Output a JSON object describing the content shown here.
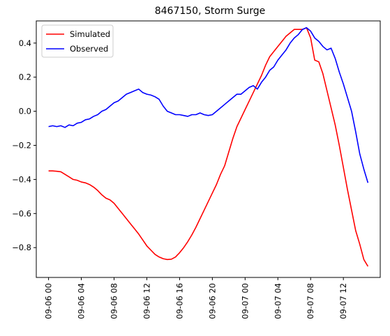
{
  "chart_data": {
    "type": "line",
    "title": "8467150, Storm Surge",
    "xlabel": "",
    "ylabel": "",
    "x_unit": "hours from 09-06 00",
    "xlim": [
      -1.5,
      37.5
    ],
    "ylim": [
      -0.975,
      0.53
    ],
    "x_ticks": [
      {
        "x": 0,
        "label": "09-06 00"
      },
      {
        "x": 4,
        "label": "09-06 04"
      },
      {
        "x": 8,
        "label": "09-06 08"
      },
      {
        "x": 12,
        "label": "09-06 12"
      },
      {
        "x": 16,
        "label": "09-06 16"
      },
      {
        "x": 20,
        "label": "09-06 20"
      },
      {
        "x": 24,
        "label": "09-07 00"
      },
      {
        "x": 28,
        "label": "09-07 04"
      },
      {
        "x": 32,
        "label": "09-07 08"
      },
      {
        "x": 36,
        "label": "09-07 12"
      }
    ],
    "y_ticks": [
      {
        "y": 0.4,
        "label": "0.4"
      },
      {
        "y": 0.2,
        "label": "0.2"
      },
      {
        "y": 0.0,
        "label": "0.0"
      },
      {
        "y": -0.2,
        "label": "−0.2"
      },
      {
        "y": -0.4,
        "label": "−0.4"
      },
      {
        "y": -0.6,
        "label": "−0.6"
      },
      {
        "y": -0.8,
        "label": "−0.8"
      }
    ],
    "grid": false,
    "legend": "top-left",
    "series": [
      {
        "name": "Simulated",
        "color": "#ff0000",
        "points": [
          [
            0,
            -0.35
          ],
          [
            0.5,
            -0.35
          ],
          [
            1,
            -0.352
          ],
          [
            1.5,
            -0.355
          ],
          [
            2,
            -0.37
          ],
          [
            2.5,
            -0.385
          ],
          [
            3,
            -0.4
          ],
          [
            3.5,
            -0.405
          ],
          [
            4,
            -0.415
          ],
          [
            4.5,
            -0.42
          ],
          [
            5,
            -0.43
          ],
          [
            5.5,
            -0.445
          ],
          [
            6,
            -0.465
          ],
          [
            6.5,
            -0.49
          ],
          [
            7,
            -0.51
          ],
          [
            7.5,
            -0.52
          ],
          [
            8,
            -0.54
          ],
          [
            8.5,
            -0.57
          ],
          [
            9,
            -0.6
          ],
          [
            9.5,
            -0.63
          ],
          [
            10,
            -0.66
          ],
          [
            10.5,
            -0.69
          ],
          [
            11,
            -0.72
          ],
          [
            11.5,
            -0.755
          ],
          [
            12,
            -0.79
          ],
          [
            12.5,
            -0.815
          ],
          [
            13,
            -0.84
          ],
          [
            13.5,
            -0.855
          ],
          [
            14,
            -0.865
          ],
          [
            14.5,
            -0.87
          ],
          [
            15,
            -0.868
          ],
          [
            15.5,
            -0.855
          ],
          [
            16,
            -0.83
          ],
          [
            16.5,
            -0.8
          ],
          [
            17,
            -0.765
          ],
          [
            17.5,
            -0.725
          ],
          [
            18,
            -0.68
          ],
          [
            18.5,
            -0.63
          ],
          [
            19,
            -0.58
          ],
          [
            19.5,
            -0.53
          ],
          [
            20,
            -0.48
          ],
          [
            20.5,
            -0.43
          ],
          [
            21,
            -0.37
          ],
          [
            21.5,
            -0.32
          ],
          [
            22,
            -0.24
          ],
          [
            22.5,
            -0.16
          ],
          [
            23,
            -0.09
          ],
          [
            23.5,
            -0.04
          ],
          [
            24,
            0.01
          ],
          [
            24.5,
            0.06
          ],
          [
            25,
            0.11
          ],
          [
            25.5,
            0.16
          ],
          [
            26,
            0.21
          ],
          [
            26.5,
            0.27
          ],
          [
            27,
            0.32
          ],
          [
            27.5,
            0.35
          ],
          [
            28,
            0.38
          ],
          [
            28.5,
            0.41
          ],
          [
            29,
            0.44
          ],
          [
            29.5,
            0.46
          ],
          [
            30,
            0.48
          ],
          [
            30.5,
            0.48
          ],
          [
            31,
            0.48
          ],
          [
            31.5,
            0.49
          ],
          [
            32,
            0.43
          ],
          [
            32.5,
            0.3
          ],
          [
            33,
            0.29
          ],
          [
            33.5,
            0.22
          ],
          [
            34,
            0.12
          ],
          [
            34.5,
            0.02
          ],
          [
            35,
            -0.08
          ],
          [
            35.5,
            -0.2
          ],
          [
            36,
            -0.33
          ],
          [
            36.5,
            -0.46
          ],
          [
            37,
            -0.58
          ],
          [
            37.5,
            -0.7
          ],
          [
            38,
            -0.78
          ],
          [
            38.5,
            -0.87
          ],
          [
            39,
            -0.91
          ]
        ]
      },
      {
        "name": "Observed",
        "color": "#0000ff",
        "points": [
          [
            0,
            -0.09
          ],
          [
            0.5,
            -0.085
          ],
          [
            1,
            -0.09
          ],
          [
            1.5,
            -0.085
          ],
          [
            2,
            -0.095
          ],
          [
            2.5,
            -0.08
          ],
          [
            3,
            -0.085
          ],
          [
            3.5,
            -0.07
          ],
          [
            4,
            -0.065
          ],
          [
            4.5,
            -0.05
          ],
          [
            5,
            -0.045
          ],
          [
            5.5,
            -0.03
          ],
          [
            6,
            -0.02
          ],
          [
            6.5,
            0.0
          ],
          [
            7,
            0.01
          ],
          [
            7.5,
            0.03
          ],
          [
            8,
            0.05
          ],
          [
            8.5,
            0.06
          ],
          [
            9,
            0.08
          ],
          [
            9.5,
            0.1
          ],
          [
            10,
            0.11
          ],
          [
            10.5,
            0.12
          ],
          [
            11,
            0.13
          ],
          [
            11.5,
            0.11
          ],
          [
            12,
            0.1
          ],
          [
            12.5,
            0.095
          ],
          [
            13,
            0.085
          ],
          [
            13.5,
            0.07
          ],
          [
            14,
            0.03
          ],
          [
            14.5,
            0.0
          ],
          [
            15,
            -0.01
          ],
          [
            15.5,
            -0.02
          ],
          [
            16,
            -0.02
          ],
          [
            16.5,
            -0.025
          ],
          [
            17,
            -0.03
          ],
          [
            17.5,
            -0.02
          ],
          [
            18,
            -0.02
          ],
          [
            18.5,
            -0.01
          ],
          [
            19,
            -0.02
          ],
          [
            19.5,
            -0.025
          ],
          [
            20,
            -0.02
          ],
          [
            20.5,
            0.0
          ],
          [
            21,
            0.02
          ],
          [
            21.5,
            0.04
          ],
          [
            22,
            0.06
          ],
          [
            22.5,
            0.08
          ],
          [
            23,
            0.1
          ],
          [
            23.5,
            0.1
          ],
          [
            24,
            0.12
          ],
          [
            24.5,
            0.14
          ],
          [
            25,
            0.15
          ],
          [
            25.5,
            0.13
          ],
          [
            26,
            0.17
          ],
          [
            26.5,
            0.2
          ],
          [
            27,
            0.24
          ],
          [
            27.5,
            0.26
          ],
          [
            28,
            0.3
          ],
          [
            28.5,
            0.33
          ],
          [
            29,
            0.36
          ],
          [
            29.5,
            0.4
          ],
          [
            30,
            0.43
          ],
          [
            30.5,
            0.45
          ],
          [
            31,
            0.48
          ],
          [
            31.5,
            0.49
          ],
          [
            32,
            0.47
          ],
          [
            32.5,
            0.43
          ],
          [
            33,
            0.41
          ],
          [
            33.5,
            0.38
          ],
          [
            34,
            0.36
          ],
          [
            34.5,
            0.37
          ],
          [
            35,
            0.31
          ],
          [
            35.5,
            0.23
          ],
          [
            36,
            0.16
          ],
          [
            36.5,
            0.08
          ],
          [
            37,
            0.0
          ],
          [
            37.5,
            -0.12
          ],
          [
            38,
            -0.25
          ],
          [
            38.5,
            -0.34
          ],
          [
            39,
            -0.42
          ]
        ]
      }
    ]
  }
}
